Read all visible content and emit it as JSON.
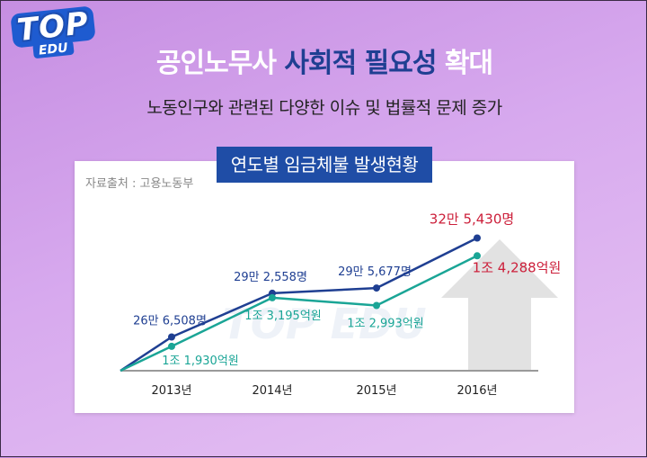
{
  "logo": {
    "top": "TOP",
    "edu": "EDU"
  },
  "headline": {
    "part1": "공인노무사 ",
    "part2": "사회적 필요성",
    "part3": " 확대"
  },
  "subhead": "노동인구와 관련된 다양한 이슈 및 법률적 문제 증가",
  "source": "자료출처 : 고용노동부",
  "watermark": "TOP EDU",
  "colors": {
    "workers": "#1f3f92",
    "amount": "#1aa596",
    "highlight": "#cc1f3a",
    "arrow": "#e2e2e2",
    "title_bg": "#1f4da6"
  },
  "chart_data": {
    "type": "line",
    "title": "연도별 임금체불 발생현황",
    "categories": [
      "2013년",
      "2014년",
      "2015년",
      "2016년"
    ],
    "series": [
      {
        "key": "workers",
        "values": [
          266508,
          292558,
          295677,
          325430
        ],
        "labels": [
          "26만 6,508명",
          "29만 2,558명",
          "29만 5,677명",
          "32만 5,430명"
        ]
      },
      {
        "key": "amount",
        "values": [
          11930,
          13195,
          12993,
          14288
        ],
        "labels": [
          "1조 1,930억원",
          "1조 3,195억원",
          "1조 2,993억원",
          "1조 4,288억원"
        ]
      }
    ]
  }
}
